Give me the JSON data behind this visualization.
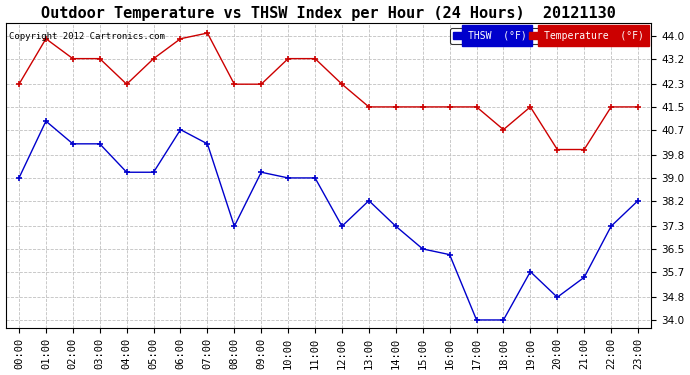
{
  "title": "Outdoor Temperature vs THSW Index per Hour (24 Hours)  20121130",
  "copyright": "Copyright 2012 Cartronics.com",
  "background_color": "#ffffff",
  "plot_bg_color": "#ffffff",
  "grid_color": "#c0c0c0",
  "hours": [
    "00:00",
    "01:00",
    "02:00",
    "03:00",
    "04:00",
    "05:00",
    "06:00",
    "07:00",
    "08:00",
    "09:00",
    "10:00",
    "11:00",
    "12:00",
    "13:00",
    "14:00",
    "15:00",
    "16:00",
    "17:00",
    "18:00",
    "19:00",
    "20:00",
    "21:00",
    "22:00",
    "23:00"
  ],
  "thsw": [
    39.0,
    41.0,
    40.2,
    40.2,
    39.2,
    39.2,
    40.7,
    40.2,
    37.3,
    39.2,
    39.0,
    39.0,
    37.3,
    38.2,
    37.3,
    36.5,
    36.3,
    34.0,
    34.0,
    35.7,
    34.8,
    35.5,
    37.3,
    38.2
  ],
  "temp": [
    42.3,
    43.9,
    43.2,
    43.2,
    42.3,
    43.2,
    43.9,
    44.1,
    42.3,
    42.3,
    43.2,
    43.2,
    42.3,
    41.5,
    41.5,
    41.5,
    41.5,
    41.5,
    40.7,
    41.5,
    40.0,
    40.0,
    41.5,
    41.5
  ],
  "thsw_color": "#0000cc",
  "temp_color": "#cc0000",
  "ylim_min": 33.7,
  "ylim_max": 44.45,
  "yticks": [
    34.0,
    34.8,
    35.7,
    36.5,
    37.3,
    38.2,
    39.0,
    39.8,
    40.7,
    41.5,
    42.3,
    43.2,
    44.0
  ],
  "title_fontsize": 11,
  "tick_fontsize": 7.5,
  "copyright_fontsize": 6.5
}
